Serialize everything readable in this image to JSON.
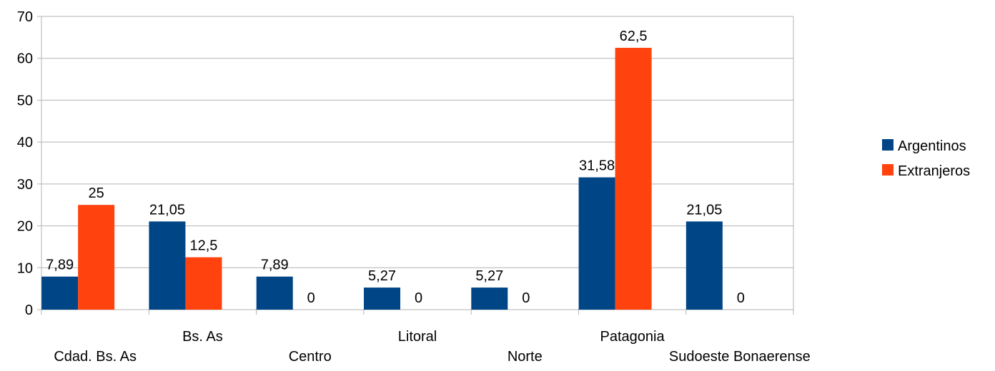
{
  "chart_data": {
    "type": "bar",
    "categories": [
      "Cdad. Bs. As",
      "Bs. As",
      "Centro",
      "Litoral",
      "Norte",
      "Patagonia",
      "Sudoeste Bonaerense"
    ],
    "series": [
      {
        "name": "Argentinos",
        "color": "#004586",
        "values": [
          7.89,
          21.05,
          7.89,
          5.27,
          5.27,
          31.58,
          21.05
        ],
        "labels": [
          "7,89",
          "21,05",
          "7,89",
          "5,27",
          "5,27",
          "31,58",
          "21,05"
        ]
      },
      {
        "name": "Extranjeros",
        "color": "#ff420e",
        "values": [
          25,
          12.5,
          0,
          0,
          0,
          62.5,
          0
        ],
        "labels": [
          "25",
          "12,5",
          "0",
          "0",
          "0",
          "62,5",
          "0"
        ]
      }
    ],
    "ylim": [
      0,
      70
    ],
    "yticks": [
      0,
      10,
      20,
      30,
      40,
      50,
      60,
      70
    ],
    "grid": true,
    "legend": "right",
    "xlabel": "",
    "ylabel": "",
    "title": ""
  }
}
